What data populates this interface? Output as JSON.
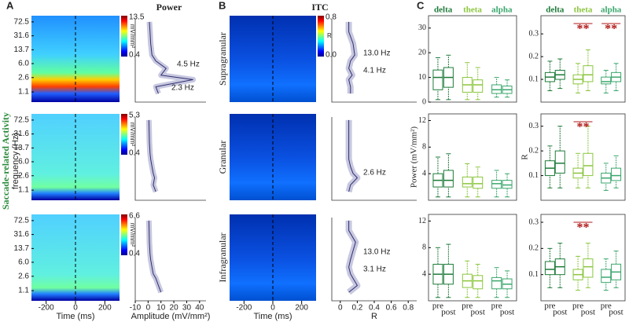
{
  "panel_letters": [
    "A",
    "B",
    "C"
  ],
  "side_label": "Saccade-related Activity",
  "freq_label": "frequency (Hz)",
  "time_label": "Time (ms)",
  "time_ticks": [
    -200,
    0,
    200
  ],
  "time_lim": [
    -300,
    300
  ],
  "freq_lim": [
    0.6,
    105
  ],
  "freq_ticks": [
    72.5,
    31.6,
    13.7,
    {
      "value": 6,
      "label": "6.0"
    },
    2.6,
    1.1
  ],
  "profile_freqs": [
    1,
    1.5,
    2.3,
    3,
    4.5,
    7,
    10,
    20,
    40,
    72.5
  ],
  "power": {
    "title": "Power",
    "colorbar_unit": "mV/mm²",
    "clims": [
      [
        0.4,
        13.5
      ],
      [
        0.4,
        5.3
      ],
      [
        0.4,
        6.6
      ]
    ],
    "amp_label": "Amplitude (mV/mm²)",
    "amp_lim": [
      -10,
      45
    ],
    "amp_ticks": [
      -10,
      0,
      10,
      20,
      30,
      40
    ],
    "profiles": [
      [
        8,
        6,
        35,
        10,
        14,
        6,
        3,
        2,
        1.5,
        1
      ],
      [
        6,
        4,
        5,
        4,
        3,
        2,
        1.5,
        1,
        0.8,
        0.6
      ],
      [
        10,
        8,
        6,
        4,
        3,
        2,
        1.5,
        1,
        0.8,
        0.6
      ]
    ],
    "annotations": [
      [
        "4.5 Hz",
        "2.3 Hz"
      ],
      [],
      []
    ]
  },
  "itc": {
    "title": "ITC",
    "colorbar_unit": "R",
    "clim": [
      {
        "value": 0,
        "label": "0.0"
      },
      0.8
    ],
    "layers": [
      "Supragranular",
      "Granular",
      "Infragranular"
    ],
    "r_label": "R",
    "r_lim": [
      -0.1,
      0.9
    ],
    "r_ticks": [
      0,
      0.2,
      0.4,
      0.6,
      0.8
    ],
    "profiles": [
      [
        0.12,
        0.12,
        0.1,
        0.14,
        0.1,
        0.12,
        0.17,
        0.15,
        0.1,
        0.1
      ],
      [
        0.1,
        0.12,
        0.2,
        0.15,
        0.12,
        0.1,
        0.1,
        0.1,
        0.1,
        0.1
      ],
      [
        0.1,
        0.2,
        0.15,
        0.12,
        0.1,
        0.12,
        0.14,
        0.18,
        0.1,
        0.1
      ]
    ],
    "annotations": [
      [
        "13.0 Hz",
        "4.1 Hz"
      ],
      [
        "2.6 Hz"
      ],
      [
        "13.0 Hz",
        "3.1 Hz"
      ]
    ]
  },
  "chart_data": {
    "type": "box",
    "bands": [
      {
        "name": "delta",
        "color": "#1e7b3a"
      },
      {
        "name": "theta",
        "color": "#8cc63e"
      },
      {
        "name": "alpha",
        "color": "#3aa76d"
      }
    ],
    "conditions": [
      "pre",
      "post"
    ],
    "power_label": "Power (mV/mm²)",
    "r_label": "R",
    "panels": [
      {
        "ylim": [
          0,
          35
        ],
        "yticks": [
          0,
          10,
          20,
          30
        ],
        "boxes": [
          [
            [
              1,
              5,
              10,
              13,
              18
            ],
            [
              1,
              6,
              10,
              14,
              19
            ]
          ],
          [
            [
              1,
              4,
              7,
              10,
              16
            ],
            [
              1,
              4,
              7,
              9,
              14
            ]
          ],
          [
            [
              2,
              3.5,
              5,
              7,
              10
            ],
            [
              2,
              3.5,
              5,
              6.5,
              9
            ]
          ]
        ],
        "significance": []
      },
      {
        "ylim": [
          0,
          0.38
        ],
        "yticks": [
          0.1,
          0.2,
          0.3
        ],
        "boxes": [
          [
            [
              0.05,
              0.09,
              0.11,
              0.13,
              0.18
            ],
            [
              0.06,
              0.1,
              0.12,
              0.14,
              0.19
            ]
          ],
          [
            [
              0.04,
              0.08,
              0.1,
              0.12,
              0.17
            ],
            [
              0.05,
              0.09,
              0.12,
              0.16,
              0.23
            ]
          ],
          [
            [
              0.04,
              0.08,
              0.09,
              0.11,
              0.14
            ],
            [
              0.05,
              0.09,
              0.11,
              0.13,
              0.17
            ]
          ]
        ],
        "significance": [
          {
            "band": 1,
            "label": "**"
          },
          {
            "band": 2,
            "label": "**"
          }
        ]
      },
      {
        "ylim": [
          0,
          13
        ],
        "yticks": [
          4,
          8,
          12
        ],
        "boxes": [
          [
            [
              0.5,
              2,
              3,
              4,
              6.5
            ],
            [
              0.5,
              2,
              3,
              4.5,
              7
            ]
          ],
          [
            [
              0.5,
              2,
              2.5,
              3.5,
              5.5
            ],
            [
              0.5,
              1.8,
              2.5,
              3.5,
              5
            ]
          ],
          [
            [
              0.5,
              1.8,
              2.5,
              3,
              4.5
            ],
            [
              0.5,
              1.8,
              2.3,
              3,
              4
            ]
          ]
        ],
        "significance": []
      },
      {
        "ylim": [
          0,
          0.35
        ],
        "yticks": [
          0.1,
          0.2,
          0.3
        ],
        "boxes": [
          [
            [
              0.05,
              0.1,
              0.13,
              0.16,
              0.22
            ],
            [
              0.05,
              0.11,
              0.15,
              0.2,
              0.3
            ]
          ],
          [
            [
              0.05,
              0.09,
              0.11,
              0.13,
              0.19
            ],
            [
              0.05,
              0.1,
              0.14,
              0.19,
              0.3
            ]
          ],
          [
            [
              0.04,
              0.07,
              0.09,
              0.11,
              0.15
            ],
            [
              0.05,
              0.08,
              0.1,
              0.13,
              0.18
            ]
          ]
        ],
        "significance": [
          {
            "band": 1,
            "label": "**"
          }
        ]
      },
      {
        "ylim": [
          0,
          13
        ],
        "yticks": [
          4,
          8,
          12
        ],
        "boxes": [
          [
            [
              0.5,
              2.5,
              4,
              5.5,
              8
            ],
            [
              0.5,
              2.5,
              4,
              5.5,
              8.5
            ]
          ],
          [
            [
              0.5,
              2,
              3,
              4,
              6
            ],
            [
              0.5,
              1.8,
              3,
              3.8,
              5.5
            ]
          ],
          [
            [
              0.5,
              1.8,
              3,
              3.5,
              5
            ],
            [
              0.5,
              1.8,
              2.5,
              3.3,
              4.5
            ]
          ]
        ],
        "significance": []
      },
      {
        "ylim": [
          0,
          0.33
        ],
        "yticks": [
          0.1,
          0.2,
          0.3
        ],
        "boxes": [
          [
            [
              0.05,
              0.1,
              0.12,
              0.15,
              0.2
            ],
            [
              0.05,
              0.1,
              0.13,
              0.16,
              0.22
            ]
          ],
          [
            [
              0.04,
              0.08,
              0.1,
              0.12,
              0.17
            ],
            [
              0.05,
              0.09,
              0.13,
              0.16,
              0.22
            ]
          ],
          [
            [
              0.04,
              0.07,
              0.09,
              0.12,
              0.16
            ],
            [
              0.05,
              0.08,
              0.11,
              0.14,
              0.19
            ]
          ]
        ],
        "significance": [
          {
            "band": 1,
            "label": "**"
          }
        ]
      }
    ]
  }
}
